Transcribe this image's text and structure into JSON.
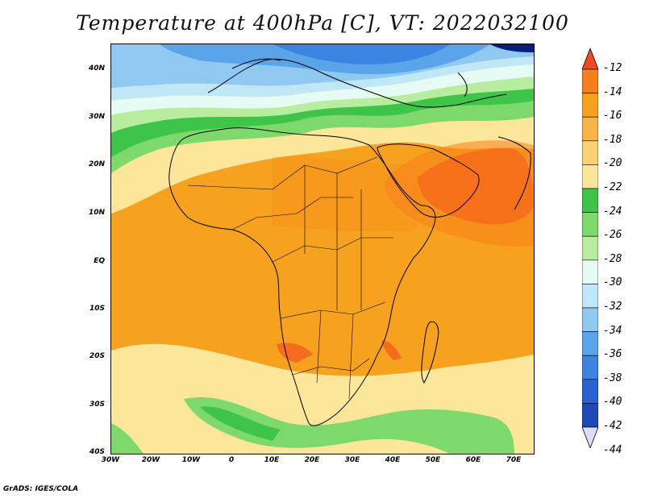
{
  "title": "Temperature at 400hPa [C], VT: 2022032100",
  "credit": "GrADS: IGES/COLA",
  "axes": {
    "lat_labels": [
      "40N",
      "30N",
      "20N",
      "10N",
      "EQ",
      "10S",
      "20S",
      "30S",
      "40S"
    ],
    "lon_labels": [
      "30W",
      "20W",
      "10W",
      "0",
      "10E",
      "20E",
      "30E",
      "40E",
      "50E",
      "60E",
      "70E"
    ],
    "lat_range": [
      -40,
      45
    ],
    "lon_range": [
      -30,
      75
    ]
  },
  "colorbar": {
    "labels": [
      "-12",
      "-14",
      "-16",
      "-18",
      "-20",
      "-22",
      "-24",
      "-26",
      "-28",
      "-30",
      "-32",
      "-34",
      "-36",
      "-38",
      "-40",
      "-42",
      "-44"
    ],
    "colors": [
      "#f24a1c",
      "#f7801a",
      "#f6a21e",
      "#f8b445",
      "#fbd172",
      "#fce69a",
      "#3fc44a",
      "#7dd96b",
      "#b8ec9e",
      "#e6fbf3",
      "#bfe7f6",
      "#8fc8f1",
      "#5aa5ea",
      "#3d84e2",
      "#2962d4",
      "#1c48b8",
      "#0a1d7a"
    ]
  },
  "regions": {
    "north_cold": "Europe / Mediterranean",
    "hot_spot": "Arabian Sea"
  }
}
